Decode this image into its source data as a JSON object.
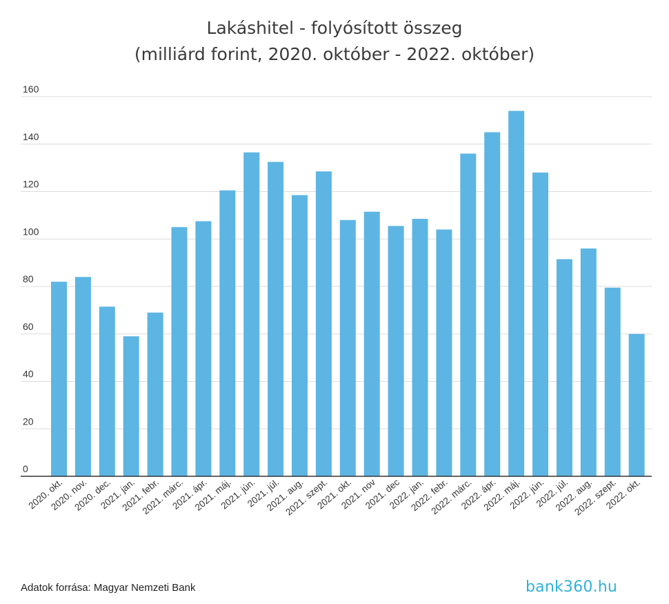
{
  "chart_data": {
    "type": "bar",
    "title": "Lakáshitel - folyósított összeg",
    "subtitle": "(milliárd forint, 2020. október - 2022. október)",
    "categories": [
      "2020. okt.",
      "2020. nov.",
      "2020. dec.",
      "2021. jan.",
      "2021. febr.",
      "2021. márc.",
      "2021. ápr.",
      "2021. máj.",
      "2021. jún.",
      "2021. júl.",
      "2021. aug.",
      "2021. szept.",
      "2021. okt.",
      "2021. nov",
      "2021. dec",
      "2022. jan.",
      "2022. febr.",
      "2022. márc.",
      "2022. ápr.",
      "2022. máj.",
      "2022. jún.",
      "2022. júl.",
      "2022. aug.",
      "2022. szept.",
      "2022. okt."
    ],
    "values": [
      82,
      84,
      71.5,
      59,
      69,
      105,
      107.5,
      120.5,
      136.5,
      132.5,
      118.5,
      128.5,
      108,
      111.5,
      105.5,
      108.5,
      104,
      136,
      145,
      154,
      128,
      91.5,
      96,
      79.5,
      60
    ],
    "yticks": [
      0,
      20,
      40,
      60,
      80,
      100,
      120,
      140,
      160
    ],
    "ylim": [
      0,
      160
    ],
    "xlabel": "",
    "ylabel": "",
    "grid": true,
    "colors": {
      "bar": "#5db5e3",
      "grid": "#dcdcdc",
      "axis": "#333333"
    }
  },
  "footer": {
    "source": "Adatok forrása: Magyar Nemzeti Bank",
    "brand": "bank360.hu"
  }
}
